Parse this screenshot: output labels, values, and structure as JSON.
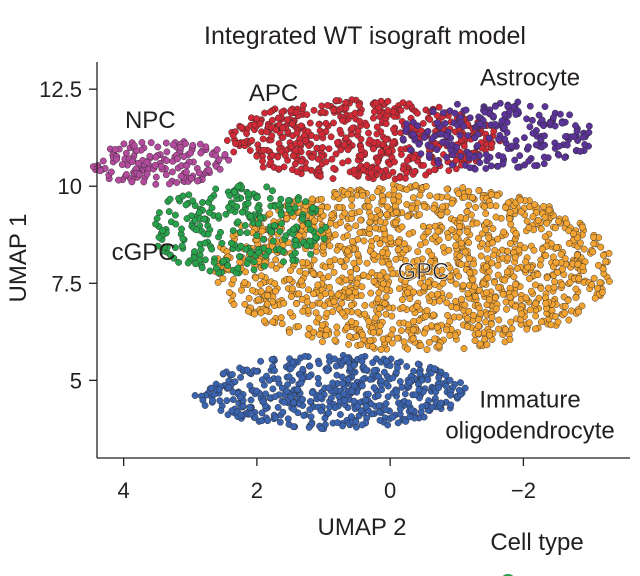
{
  "chart_data": {
    "type": "scatter",
    "title": "Integrated WT isograft model",
    "xlabel": "UMAP 2",
    "ylabel": "UMAP 1",
    "xlim": [
      4.4,
      -3.6
    ],
    "ylim": [
      3.0,
      13.2
    ],
    "x_axis_reversed": true,
    "xticks": [
      4,
      2,
      0,
      -2
    ],
    "xtick_labels": [
      "4",
      "2",
      "0",
      "−2"
    ],
    "yticks": [
      5,
      7.5,
      10,
      12.5
    ],
    "ytick_labels": [
      "5",
      "7.5",
      "10",
      "12.5"
    ],
    "grid": false,
    "legend_title": "Cell type",
    "legend_position": "bottom-right",
    "series": [
      {
        "name": "Immature oligodendrocyte",
        "label_lines": [
          "Immature",
          "oligodendrocyte"
        ],
        "color": "#3a63b0",
        "center": [
          0.9,
          4.7
        ],
        "spread": [
          2.05,
          0.95
        ],
        "count": 520,
        "label_pos": [
          -2.1,
          4.3
        ]
      },
      {
        "name": "GPC",
        "color": "#f2a331",
        "center": [
          -0.35,
          7.9
        ],
        "spread": [
          3.0,
          2.15
        ],
        "count": 1500,
        "label_pos": [
          -0.5,
          7.6
        ]
      },
      {
        "name": "cGPC",
        "color": "#27a24b",
        "center": [
          2.3,
          8.9
        ],
        "spread": [
          1.35,
          1.15
        ],
        "count": 260,
        "label_pos": [
          3.7,
          8.1
        ]
      },
      {
        "name": "APC",
        "color": "#d12a36",
        "center": [
          0.4,
          11.2
        ],
        "spread": [
          2.05,
          1.05
        ],
        "count": 560,
        "label_pos": [
          1.75,
          12.2
        ]
      },
      {
        "name": "NPC",
        "color": "#b54b9e",
        "center": [
          3.45,
          10.6
        ],
        "spread": [
          1.05,
          0.6
        ],
        "count": 160,
        "label_pos": [
          3.6,
          11.5
        ]
      },
      {
        "name": "Astrocyte",
        "color": "#5b3399",
        "center": [
          -1.6,
          11.3
        ],
        "spread": [
          1.45,
          0.9
        ],
        "count": 230,
        "label_pos": [
          -2.1,
          12.6
        ]
      }
    ]
  }
}
